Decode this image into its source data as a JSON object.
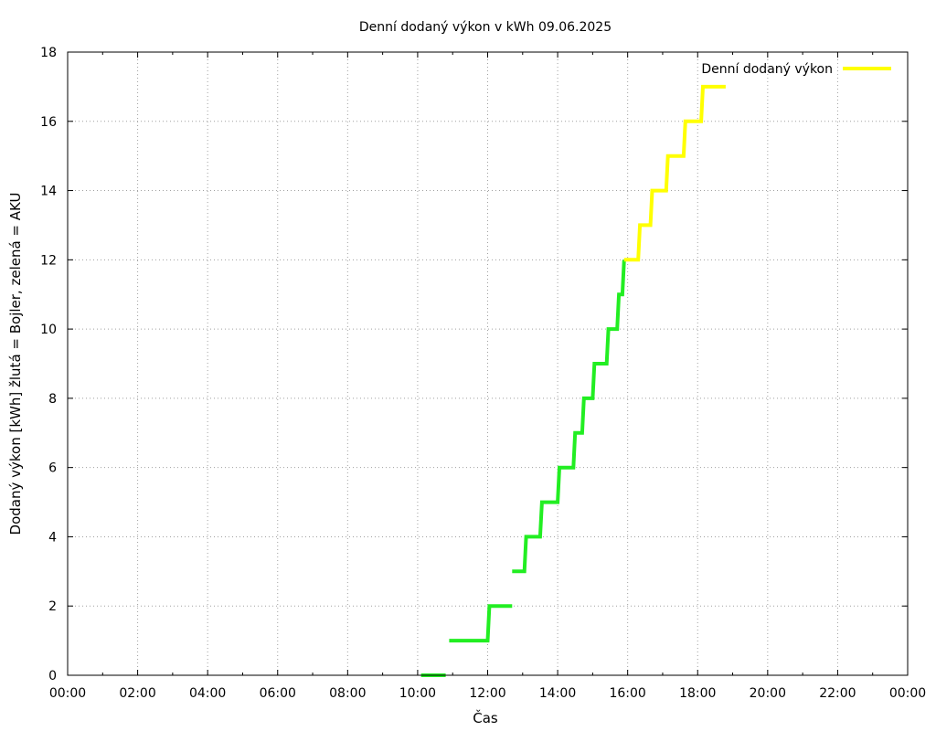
{
  "chart_data": {
    "type": "line",
    "title": "Denní dodaný výkon v kWh 09.06.2025",
    "xlabel": "Čas",
    "ylabel": "Dodaný výkon [kWh]  žlutá = Bojler, zelená = AKU",
    "xlim": [
      0,
      24
    ],
    "ylim": [
      0,
      18
    ],
    "xticks": [
      {
        "value": 0,
        "label": "00:00"
      },
      {
        "value": 2,
        "label": "02:00"
      },
      {
        "value": 4,
        "label": "04:00"
      },
      {
        "value": 6,
        "label": "06:00"
      },
      {
        "value": 8,
        "label": "08:00"
      },
      {
        "value": 10,
        "label": "10:00"
      },
      {
        "value": 12,
        "label": "12:00"
      },
      {
        "value": 14,
        "label": "14:00"
      },
      {
        "value": 16,
        "label": "16:00"
      },
      {
        "value": 18,
        "label": "18:00"
      },
      {
        "value": 20,
        "label": "20:00"
      },
      {
        "value": 22,
        "label": "22:00"
      },
      {
        "value": 24,
        "label": "00:00"
      }
    ],
    "yticks": [
      {
        "value": 0,
        "label": "0"
      },
      {
        "value": 2,
        "label": "2"
      },
      {
        "value": 4,
        "label": "4"
      },
      {
        "value": 6,
        "label": "6"
      },
      {
        "value": 8,
        "label": "8"
      },
      {
        "value": 10,
        "label": "10"
      },
      {
        "value": 12,
        "label": "12"
      },
      {
        "value": 14,
        "label": "14"
      },
      {
        "value": 16,
        "label": "16"
      },
      {
        "value": 18,
        "label": "18"
      }
    ],
    "grid": true,
    "legend": {
      "position": "top-right",
      "label": "Denní dodaný výkon",
      "color": "#ffff00"
    },
    "series": [
      {
        "color": "#22ee22",
        "segments": [
          [
            [
              10.1,
              0
            ],
            [
              10.8,
              0
            ]
          ],
          [
            [
              10.9,
              1
            ],
            [
              12.0,
              1
            ],
            [
              12.05,
              2
            ],
            [
              12.7,
              2
            ]
          ],
          [
            [
              12.7,
              3
            ],
            [
              13.05,
              3
            ],
            [
              13.1,
              4
            ],
            [
              13.5,
              4
            ],
            [
              13.55,
              5
            ],
            [
              14.0,
              5
            ],
            [
              14.05,
              6
            ],
            [
              14.45,
              6
            ],
            [
              14.5,
              7
            ],
            [
              14.7,
              7
            ],
            [
              14.75,
              8
            ],
            [
              15.0,
              8
            ],
            [
              15.05,
              9
            ],
            [
              15.4,
              9
            ],
            [
              15.45,
              10
            ],
            [
              15.7,
              10
            ],
            [
              15.75,
              11
            ],
            [
              15.85,
              11
            ],
            [
              15.9,
              12
            ]
          ]
        ]
      },
      {
        "color": "#ffff00",
        "segments": [
          [
            [
              15.9,
              12
            ],
            [
              16.3,
              12
            ],
            [
              16.35,
              13
            ],
            [
              16.65,
              13
            ],
            [
              16.7,
              14
            ],
            [
              17.1,
              14
            ],
            [
              17.15,
              15
            ],
            [
              17.6,
              15
            ],
            [
              17.65,
              16
            ],
            [
              18.1,
              16
            ],
            [
              18.15,
              17
            ],
            [
              18.8,
              17
            ]
          ]
        ]
      }
    ]
  }
}
